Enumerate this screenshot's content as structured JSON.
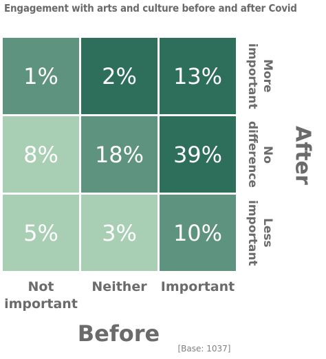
{
  "chart_data": {
    "type": "heatmap",
    "title": "Engagement with arts and culture before and after Covid",
    "xlabel": "Before",
    "ylabel": "After",
    "x_categories": [
      "Not important",
      "Neither",
      "Important"
    ],
    "y_categories": [
      "More important",
      "No difference",
      "Less important"
    ],
    "values": [
      [
        "1%",
        "2%",
        "13%"
      ],
      [
        "8%",
        "18%",
        "39%"
      ],
      [
        "5%",
        "3%",
        "10%"
      ]
    ],
    "cell_colors": [
      [
        "#5e9380",
        "#2e6f5b",
        "#2e6f5b"
      ],
      [
        "#a8cfb4",
        "#5e9380",
        "#2e6f5b"
      ],
      [
        "#a8cfb4",
        "#a8cfb4",
        "#5e9380"
      ]
    ],
    "note": "[Base: 1037]"
  }
}
